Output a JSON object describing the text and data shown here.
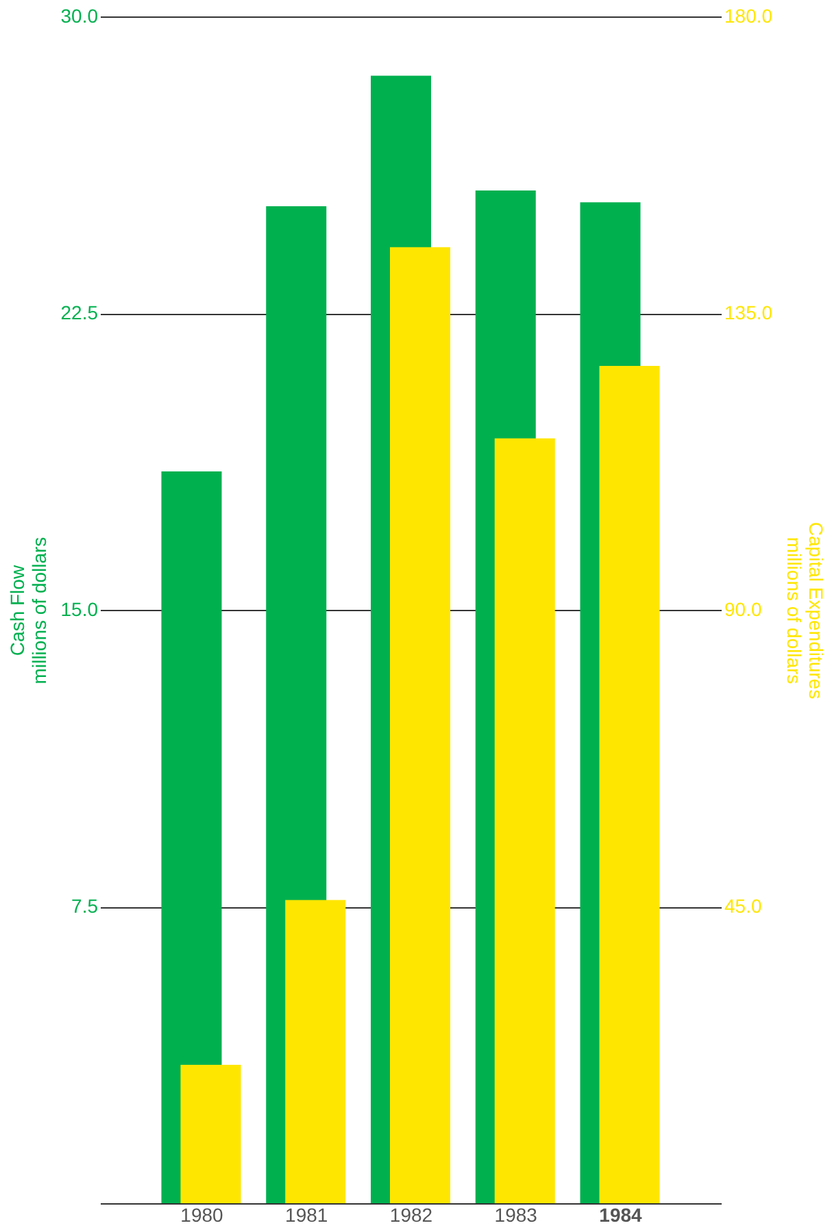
{
  "chart_data": {
    "type": "bar",
    "categories": [
      "1980",
      "1981",
      "1982",
      "1983",
      "1984"
    ],
    "ylabel": "Cash Flow\nmillions of dollars",
    "y2label": "Capital Expenditures\nmillions of dollars",
    "series": [
      {
        "color": "#00b04f",
        "values": [
          18.5,
          25.2,
          28.5,
          25.6,
          25.3
        ]
      },
      {
        "color": "#ffe600",
        "axis": "y2",
        "values": [
          21,
          46,
          145,
          116,
          127
        ]
      }
    ],
    "ylim": [
      0,
      30
    ],
    "yticks": [
      {
        "value": 0,
        "label": null
      },
      7.5,
      {
        "value": 15,
        "label": "15.0"
      },
      22.5,
      {
        "value": 30,
        "label": "30.0"
      }
    ],
    "y2lim": [
      0,
      180
    ],
    "y2ticks": [
      {
        "value": 0,
        "label": null
      },
      {
        "value": 45,
        "label": "45.0"
      },
      {
        "value": 90,
        "label": "90.0"
      },
      {
        "value": 135,
        "label": "135.0"
      },
      {
        "value": 180,
        "label": "180.0"
      }
    ],
    "grid": "y",
    "legend": false
  }
}
